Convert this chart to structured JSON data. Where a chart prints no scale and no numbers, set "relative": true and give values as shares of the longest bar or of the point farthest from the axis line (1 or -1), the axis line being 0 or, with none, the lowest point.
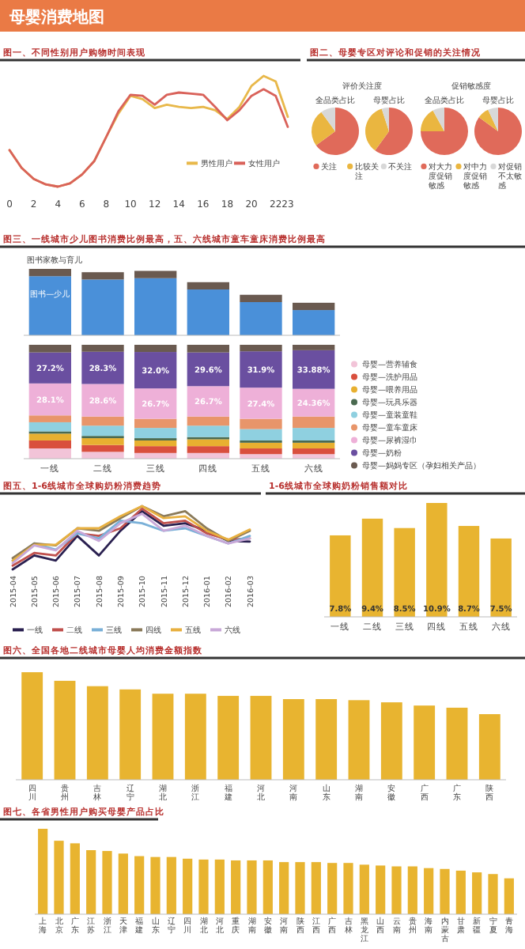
{
  "chart_data": [
    {
      "type": "other",
      "title": "母婴消费地图"
    },
    {
      "type": "line",
      "title": "图一、不同性别用户购物时间表现",
      "relative": true,
      "x": [
        0,
        1,
        2,
        3,
        4,
        5,
        6,
        7,
        8,
        9,
        10,
        11,
        12,
        13,
        14,
        15,
        16,
        17,
        18,
        19,
        20,
        21,
        22,
        23
      ],
      "xlim": [
        0,
        23
      ],
      "xticks": [
        0,
        2,
        4,
        6,
        8,
        10,
        12,
        14,
        16,
        18,
        20,
        22,
        23
      ],
      "legend": "bottom right",
      "series": [
        {
          "name": "男性用户",
          "color": "#e8b84a",
          "values": [
            0.33,
            0.17,
            0.07,
            0.02,
            0,
            0.03,
            0.11,
            0.23,
            0.45,
            0.66,
            0.82,
            0.79,
            0.71,
            0.74,
            0.72,
            0.71,
            0.72,
            0.69,
            0.61,
            0.72,
            0.91,
            1,
            0.95,
            0.63
          ]
        },
        {
          "name": "女性用户",
          "color": "#d9625a",
          "values": [
            0.33,
            0.17,
            0.07,
            0.02,
            0,
            0.03,
            0.11,
            0.23,
            0.45,
            0.68,
            0.83,
            0.82,
            0.74,
            0.83,
            0.85,
            0.84,
            0.83,
            0.72,
            0.6,
            0.69,
            0.82,
            0.88,
            0.82,
            0.54
          ]
        }
      ]
    },
    {
      "type": "other",
      "title": "图二、母婴专区对评论和促销的关注情况"
    },
    {
      "type": "pie",
      "title": "全品类占比",
      "subtitle": "评价关注度",
      "categories": [
        "关注",
        "比较关注",
        "不关注"
      ],
      "values": [
        65,
        25,
        10
      ],
      "colors": [
        "#e06a5a",
        "#eab640",
        "#d8d8d8"
      ],
      "legend": "bottom"
    },
    {
      "type": "pie",
      "title": "母婴占比",
      "categories": [
        null,
        null,
        null
      ],
      "values": [
        60,
        35,
        5
      ],
      "colors": [
        "#e06a5a",
        "#eab640",
        "#d8d8d8"
      ]
    },
    {
      "type": "pie",
      "title": "全品类占比",
      "subtitle": "促销敏感度",
      "categories": [
        "对大力度促销敏感",
        "对中力度促销敏感",
        "对促销不太敏感"
      ],
      "values": [
        75,
        17,
        8
      ],
      "colors": [
        "#e06a5a",
        "#eab640",
        "#d8d8d8"
      ],
      "legend": "bottom"
    },
    {
      "type": "pie",
      "title": "母婴占比",
      "categories": [
        null,
        null,
        null
      ],
      "values": [
        85,
        8,
        7
      ],
      "colors": [
        "#e06a5a",
        "#eab640",
        "#d8d8d8"
      ]
    },
    {
      "type": "bar",
      "title": "图三、一线城市少儿图书消费比例最高，五、六线城市童车童床消费比例最高",
      "annotations": [
        "图书家教与育儿"
      ],
      "relative": true,
      "stacked": true,
      "tick_labels": false,
      "categories": [
        "一线",
        "二线",
        "三线",
        "四线",
        "五线",
        "六线"
      ],
      "series": [
        {
          "name": "图书—少儿",
          "color": "#4a90d9",
          "values": [
            0.89,
            0.84,
            0.86,
            0.69,
            0.5,
            0.38
          ]
        },
        {
          "color": "#6a5a50",
          "values": [
            0.11,
            0.11,
            0.11,
            0.11,
            0.11,
            0.11
          ]
        }
      ]
    },
    {
      "type": "bar",
      "stacked": true,
      "legend": "right",
      "categories": [
        "一线",
        "二线",
        "三线",
        "四线",
        "五线",
        "六线"
      ],
      "series": [
        {
          "name": "母婴—营养辅食",
          "color": "#f2c4d8",
          "values": [
            9,
            6,
            5,
            5,
            4,
            4
          ]
        },
        {
          "name": "母婴—洗护用品",
          "color": "#d94f3d",
          "values": [
            7,
            6,
            6,
            6,
            5,
            5
          ]
        },
        {
          "name": "母婴—喂养用品",
          "color": "#e8b030",
          "values": [
            6,
            6,
            5,
            6,
            5,
            5
          ]
        },
        {
          "name": "母婴—玩具乐器",
          "color": "#4a6a50",
          "values": [
            2,
            2,
            2,
            2,
            2,
            2
          ]
        },
        {
          "name": "母婴—童装童鞋",
          "color": "#8fd0e0",
          "values": [
            8,
            9,
            9,
            10,
            10,
            11
          ]
        },
        {
          "name": "母婴—童车童床",
          "color": "#e8956a",
          "values": [
            6,
            8,
            8,
            8,
            9,
            10
          ]
        },
        {
          "name": "母婴—尿裤湿巾",
          "color": "#eeb0d8",
          "values": [
            28.1,
            28.6,
            26.7,
            26.7,
            27.4,
            24.36
          ],
          "value_labels": [
            "28.1%",
            "28.6%",
            "26.7%",
            "26.7%",
            "27.4%",
            "24.36%"
          ]
        },
        {
          "name": "母婴—奶粉",
          "color": "#6a4fa0",
          "values": [
            27.2,
            28.3,
            32.0,
            29.6,
            31.9,
            33.88
          ],
          "value_labels": [
            "27.2%",
            "28.3%",
            "32.0%",
            "29.6%",
            "31.9%",
            "33.88%"
          ]
        },
        {
          "name": "母婴—妈妈专区（孕妇相关产品）",
          "color": "#6a5a50",
          "values": [
            6.7,
            6.1,
            6.3,
            6.7,
            5.7,
            4.76
          ]
        }
      ]
    },
    {
      "type": "line",
      "title": "图五、1-6线城市全球购奶粉消费趋势",
      "relative": true,
      "legend": "bottom",
      "categories": [
        "2015-04",
        "2015-05",
        "2015-06",
        "2015-07",
        "2015-08",
        "2015-09",
        "2015-10",
        "2015-11",
        "2015-12",
        "2016-01",
        "2016-02",
        "2016-03"
      ],
      "series": [
        {
          "name": "一线",
          "color": "#2a2050",
          "values": [
            0,
            0.22,
            0.14,
            0.53,
            0.22,
            0.61,
            0.92,
            0.69,
            0.73,
            0.61,
            0.45,
            0.44
          ]
        },
        {
          "name": "二线",
          "color": "#c0504d",
          "values": [
            0.06,
            0.26,
            0.22,
            0.57,
            0.53,
            0.65,
            0.96,
            0.73,
            0.77,
            0.57,
            0.47,
            0.49
          ]
        },
        {
          "name": "三线",
          "color": "#7ab0d8",
          "values": [
            0.14,
            0.41,
            0.31,
            0.57,
            0.49,
            0.77,
            0.73,
            0.61,
            0.65,
            0.53,
            0.41,
            0.53
          ]
        },
        {
          "name": "四线",
          "color": "#8a7a5a",
          "values": [
            0.18,
            0.41,
            0.38,
            0.65,
            0.61,
            0.81,
            1,
            0.84,
            0.92,
            0.65,
            0.45,
            0.61
          ]
        },
        {
          "name": "五线",
          "color": "#e8b040",
          "values": [
            0.14,
            0.39,
            0.39,
            0.65,
            0.65,
            0.84,
            1,
            0.81,
            0.84,
            0.61,
            0.47,
            0.63
          ]
        },
        {
          "name": "六线",
          "color": "#c8a8d8",
          "values": [
            0.1,
            0.38,
            0.3,
            0.61,
            0.45,
            0.73,
            0.88,
            0.61,
            0.69,
            0.53,
            0.41,
            0.49
          ]
        }
      ]
    },
    {
      "type": "bar",
      "title": "1-6线城市全球购奶粉销售额对比",
      "categories": [
        "一线",
        "二线",
        "三线",
        "四线",
        "五线",
        "六线"
      ],
      "values": [
        7.8,
        9.4,
        8.5,
        10.9,
        8.7,
        7.5
      ],
      "value_labels": [
        "7.8%",
        "9.4%",
        "8.5%",
        "10.9%",
        "8.7%",
        "7.5%"
      ],
      "color": "#e8b430"
    },
    {
      "type": "bar",
      "title": "图六、全国各地二线城市母婴人均消费金额指数",
      "relative": true,
      "categories": [
        "四川",
        "贵州",
        "吉林",
        "辽宁",
        "湖北",
        "浙江",
        "福建",
        "河北",
        "河南",
        "山东",
        "湖南",
        "安徽",
        "广西",
        "广东",
        "陕西"
      ],
      "values": [
        1,
        0.92,
        0.87,
        0.84,
        0.8,
        0.8,
        0.78,
        0.78,
        0.75,
        0.75,
        0.74,
        0.72,
        0.69,
        0.67,
        0.61
      ],
      "color": "#e8b430"
    },
    {
      "type": "bar",
      "title": "图七、各省男性用户购买母婴产品占比",
      "relative": true,
      "categories": [
        "上海",
        "北京",
        "广东",
        "江苏",
        "浙江",
        "天津",
        "福建",
        "山东",
        "辽宁",
        "四川",
        "湖北",
        "河北",
        "重庆",
        "湖南",
        "安徽",
        "河南",
        "陕西",
        "江西",
        "广西",
        "吉林",
        "黑龙江",
        "山西",
        "云南",
        "贵州",
        "海南",
        "内蒙古",
        "甘肃",
        "新疆",
        "宁夏",
        "青海"
      ],
      "values": [
        1,
        0.86,
        0.83,
        0.75,
        0.74,
        0.71,
        0.68,
        0.67,
        0.67,
        0.65,
        0.64,
        0.64,
        0.63,
        0.63,
        0.63,
        0.61,
        0.61,
        0.61,
        0.6,
        0.6,
        0.58,
        0.57,
        0.56,
        0.56,
        0.54,
        0.53,
        0.51,
        0.49,
        0.47,
        0.42
      ],
      "color": "#e8b430"
    }
  ]
}
